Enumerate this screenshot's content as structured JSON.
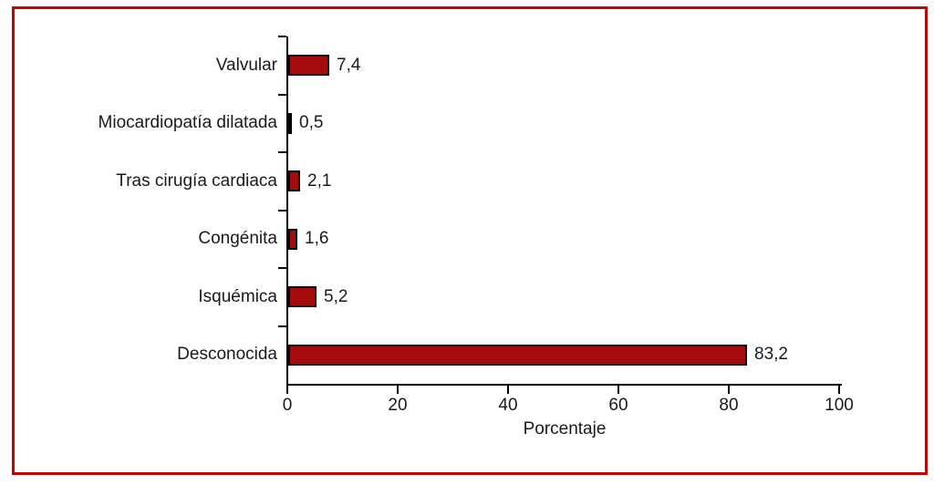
{
  "chart_data": {
    "type": "bar",
    "orientation": "horizontal",
    "categories": [
      "Valvular",
      "Miocardiopatía dilatada",
      "Tras cirugía cardiaca",
      "Congénita",
      "Isquémica",
      "Desconocida"
    ],
    "values": [
      7.4,
      0.5,
      2.1,
      1.6,
      5.2,
      83.2
    ],
    "value_labels": [
      "7,4",
      "0,5",
      "2,1",
      "1,6",
      "5,2",
      "83,2"
    ],
    "title": "",
    "xlabel": "Porcentaje",
    "ylabel": "",
    "xlim": [
      0,
      100
    ],
    "xticks": [
      0,
      20,
      40,
      60,
      80,
      100
    ],
    "xtick_labels": [
      "0",
      "20",
      "40",
      "60",
      "80",
      "100"
    ],
    "grid": "off",
    "legend": "none",
    "bar_color": "#a50d0d",
    "bar_border_color": "#000000",
    "axis_color": "#000000",
    "frame_color": "#c40505",
    "text_color": "#1a1a1a"
  }
}
